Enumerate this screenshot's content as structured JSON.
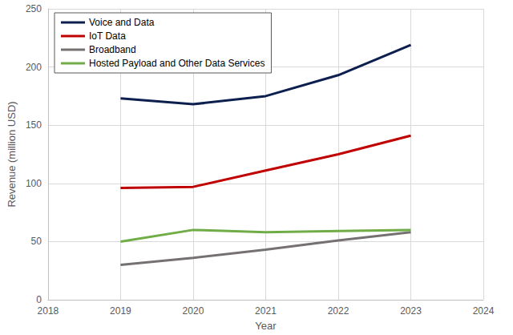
{
  "chart_data": {
    "type": "line",
    "x_label": "Year",
    "y_label": "Revenue (million USD)",
    "x": [
      2019,
      2020,
      2021,
      2022,
      2023
    ],
    "series": [
      {
        "name": "Voice and Data",
        "color": "#0d1f4f",
        "values": [
          173,
          168,
          175,
          193,
          219
        ]
      },
      {
        "name": "IoT Data",
        "color": "#c00000",
        "values": [
          96,
          97,
          111,
          125,
          141
        ]
      },
      {
        "name": "Broadband",
        "color": "#767171",
        "values": [
          30,
          36,
          43,
          51,
          58
        ]
      },
      {
        "name": "Hosted Payload and Other Data Services",
        "color": "#70ad47",
        "values": [
          50,
          60,
          58,
          59,
          60
        ]
      }
    ],
    "xlim": [
      2018,
      2024
    ],
    "xticks": [
      2018,
      2019,
      2020,
      2021,
      2022,
      2023,
      2024
    ],
    "ylim": [
      0,
      250
    ],
    "yticks": [
      0,
      50,
      100,
      150,
      200,
      250
    ],
    "grid": true,
    "legend": "upper left"
  }
}
